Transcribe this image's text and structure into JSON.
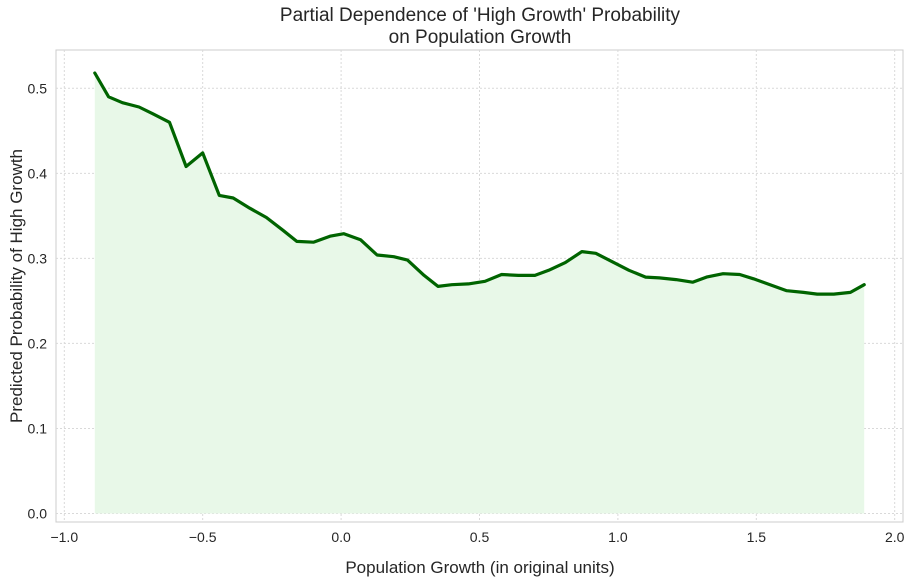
{
  "chart_data": {
    "type": "area",
    "title": [
      "Partial Dependence of 'High Growth' Probability",
      "on Population Growth"
    ],
    "xlabel": "Population Growth (in original units)",
    "ylabel": "Predicted Probability of High Growth",
    "xlim": [
      -1.03,
      2.03
    ],
    "ylim": [
      -0.01,
      0.545
    ],
    "xticks": [
      -1.0,
      -0.5,
      0.0,
      0.5,
      1.0,
      1.5,
      2.0
    ],
    "xtick_labels": [
      "−1.0",
      "−0.5",
      "0.0",
      "0.5",
      "1.0",
      "1.5",
      "2.0"
    ],
    "yticks": [
      0.0,
      0.1,
      0.2,
      0.3,
      0.4,
      0.5
    ],
    "ytick_labels": [
      "0.0",
      "0.1",
      "0.2",
      "0.3",
      "0.4",
      "0.5"
    ],
    "grid": true,
    "series": [
      {
        "line_color": "#006400",
        "fill_color": "#e8f8e8",
        "fill_to": 0,
        "points": [
          [
            -0.89,
            0.518
          ],
          [
            -0.84,
            0.49
          ],
          [
            -0.79,
            0.483
          ],
          [
            -0.73,
            0.478
          ],
          [
            -0.68,
            0.47
          ],
          [
            -0.62,
            0.46
          ],
          [
            -0.56,
            0.408
          ],
          [
            -0.5,
            0.424
          ],
          [
            -0.44,
            0.374
          ],
          [
            -0.39,
            0.371
          ],
          [
            -0.33,
            0.359
          ],
          [
            -0.27,
            0.348
          ],
          [
            -0.21,
            0.333
          ],
          [
            -0.16,
            0.32
          ],
          [
            -0.1,
            0.319
          ],
          [
            -0.04,
            0.326
          ],
          [
            0.01,
            0.329
          ],
          [
            0.07,
            0.322
          ],
          [
            0.13,
            0.304
          ],
          [
            0.19,
            0.302
          ],
          [
            0.24,
            0.298
          ],
          [
            0.3,
            0.28
          ],
          [
            0.35,
            0.267
          ],
          [
            0.4,
            0.269
          ],
          [
            0.46,
            0.27
          ],
          [
            0.52,
            0.273
          ],
          [
            0.58,
            0.281
          ],
          [
            0.64,
            0.28
          ],
          [
            0.7,
            0.28
          ],
          [
            0.75,
            0.286
          ],
          [
            0.81,
            0.295
          ],
          [
            0.87,
            0.308
          ],
          [
            0.92,
            0.306
          ],
          [
            0.98,
            0.296
          ],
          [
            1.04,
            0.286
          ],
          [
            1.1,
            0.278
          ],
          [
            1.15,
            0.277
          ],
          [
            1.21,
            0.275
          ],
          [
            1.27,
            0.272
          ],
          [
            1.32,
            0.278
          ],
          [
            1.38,
            0.282
          ],
          [
            1.44,
            0.281
          ],
          [
            1.49,
            0.276
          ],
          [
            1.55,
            0.269
          ],
          [
            1.61,
            0.262
          ],
          [
            1.67,
            0.26
          ],
          [
            1.72,
            0.258
          ],
          [
            1.78,
            0.258
          ],
          [
            1.84,
            0.26
          ],
          [
            1.89,
            0.269
          ]
        ]
      }
    ]
  }
}
